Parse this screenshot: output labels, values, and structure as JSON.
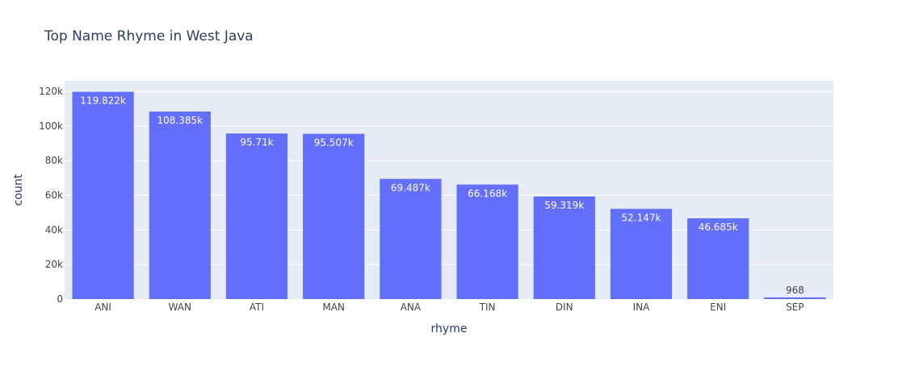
{
  "colors": {
    "background": "#ffffff",
    "plot_background": "#e5ecf6",
    "grid": "#ffffff",
    "bar": "#636efa",
    "text": "#2a3f5f",
    "tick_text": "#444444",
    "label_inside": "#ffffff",
    "label_outside": "#444444"
  },
  "chart_data": {
    "type": "bar",
    "title": "Top Name Rhyme in West Java",
    "xlabel": "rhyme",
    "ylabel": "count",
    "categories": [
      "ANI",
      "WAN",
      "ATI",
      "MAN",
      "ANA",
      "TIN",
      "DIN",
      "INA",
      "ENI",
      "SEP"
    ],
    "values": [
      119822,
      108385,
      95710,
      95507,
      69487,
      66168,
      59319,
      52147,
      46685,
      968
    ],
    "value_labels": [
      "119.822k",
      "108.385k",
      "95.71k",
      "95.507k",
      "69.487k",
      "66.168k",
      "59.319k",
      "52.147k",
      "46.685k",
      "968"
    ],
    "ylim": [
      0,
      126128
    ],
    "yticks": [
      0,
      20000,
      40000,
      60000,
      80000,
      100000,
      120000
    ],
    "ytick_labels": [
      "0",
      "20k",
      "40k",
      "60k",
      "80k",
      "100k",
      "120k"
    ],
    "grid": true,
    "legend": false
  }
}
